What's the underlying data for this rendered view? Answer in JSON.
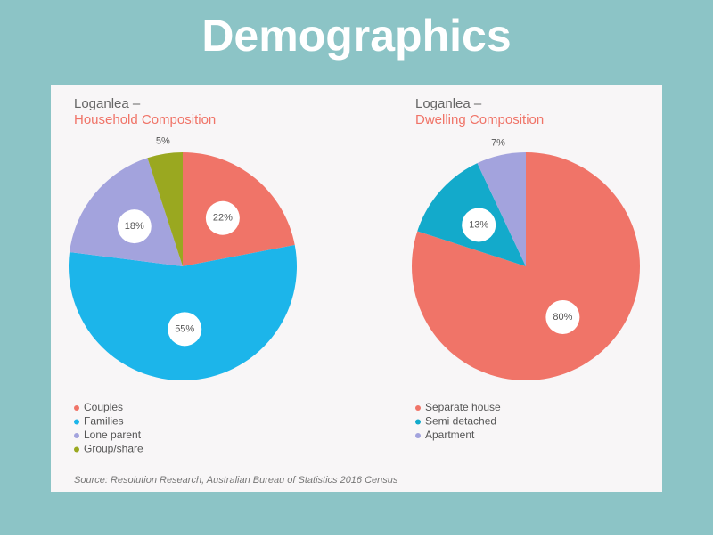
{
  "header": {
    "title": "Demographics"
  },
  "source": "Source: Resolution Research, Australian Bureau of Statistics 2016 Census",
  "chart_data": [
    {
      "type": "pie",
      "title": "Loganlea –",
      "subtitle": "Household Composition",
      "categories": [
        "Couples",
        "Families",
        "Lone parent",
        "Group/share"
      ],
      "values": [
        22,
        55,
        18,
        5
      ],
      "value_labels": [
        "22%",
        "55%",
        "18%",
        "5%"
      ],
      "colors": [
        "#f07468",
        "#1cb5ea",
        "#a3a3dd",
        "#9aa820"
      ]
    },
    {
      "type": "pie",
      "title": "Loganlea –",
      "subtitle": "Dwelling Composition",
      "categories": [
        "Separate house",
        "Semi detached",
        "Apartment"
      ],
      "values": [
        80,
        13,
        7
      ],
      "value_labels": [
        "80%",
        "13%",
        "7%"
      ],
      "colors": [
        "#f07468",
        "#13aacb",
        "#a3a3dd"
      ]
    }
  ]
}
